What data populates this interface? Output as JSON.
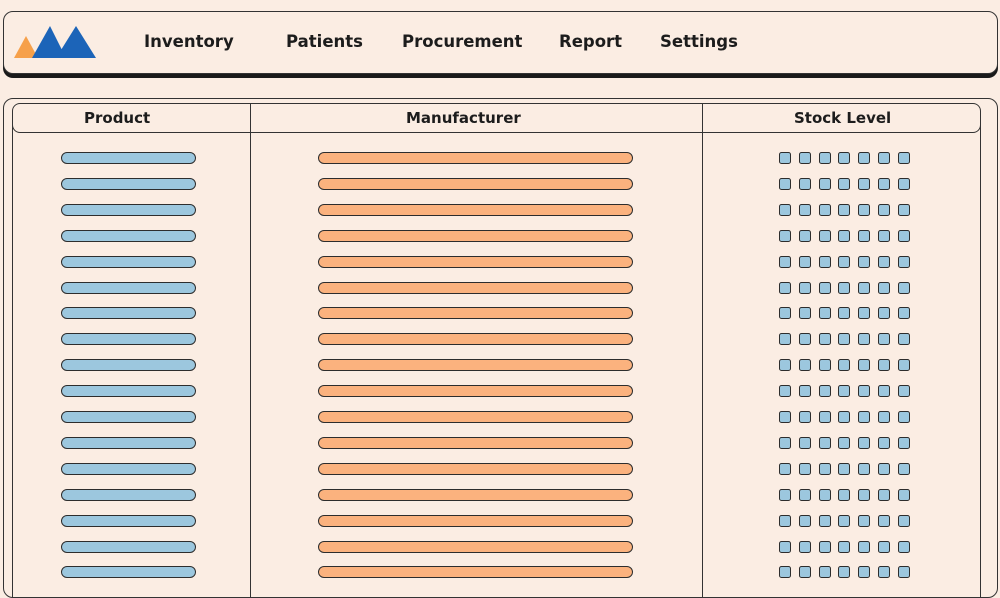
{
  "nav": {
    "logo": "logo",
    "items": [
      "Inventory",
      "Patients",
      "Procurement",
      "Report",
      "Settings"
    ]
  },
  "table": {
    "columns": [
      "Product",
      "Manufacturer",
      "Stock Level"
    ],
    "row_count": 17,
    "stock_squares_per_row": 7
  },
  "colors": {
    "background": "#fbede3",
    "product_bar": "#9cc7de",
    "manufacturer_bar": "#fbb27e",
    "stock_square": "#9cc7de",
    "logo_orange": "#f6a04a",
    "logo_blue": "#1c64b8"
  }
}
